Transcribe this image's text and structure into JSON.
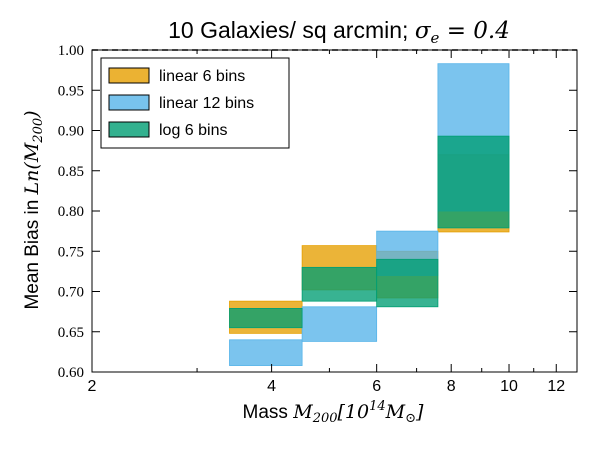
{
  "chart_data": {
    "type": "bar",
    "title": {
      "text": "10 Galaxies/ sq arcmin; ",
      "math_var": "σ",
      "math_sub": "e",
      "math_rest": " = 0.4"
    },
    "xlabel": {
      "text": "Mass ",
      "math": "M",
      "math_sub": "200",
      "math_rest": "[10",
      "math_sup": "14",
      "math_rest2": "M",
      "math_sub2": "⊙",
      "math_close": "]"
    },
    "ylabel": {
      "text": "Mean Bias in ",
      "math": "Ln(M",
      "math_sub": "200",
      "math_close": ")"
    },
    "x_scale": "log",
    "xlim": [
      2,
      13
    ],
    "ylim": [
      0.6,
      1.0
    ],
    "x_ticks": [
      2,
      4,
      6,
      8,
      10,
      12
    ],
    "y_ticks": [
      "0.60",
      "0.65",
      "0.70",
      "0.75",
      "0.80",
      "0.85",
      "0.90",
      "0.95",
      "1.00"
    ],
    "reference_line": {
      "y": 1.0,
      "style": "dashed"
    },
    "legend_position": "top-left",
    "series": [
      {
        "name": "linear 6 bins",
        "color": "#E69F00",
        "bands": [
          {
            "x0": 3.4,
            "x1": 4.5,
            "low": 0.648,
            "high": 0.688
          },
          {
            "x0": 4.5,
            "x1": 6.0,
            "low": 0.702,
            "high": 0.757
          },
          {
            "x0": 6.0,
            "x1": 7.6,
            "low": 0.692,
            "high": 0.75
          },
          {
            "x0": 7.6,
            "x1": 10.0,
            "low": 0.774,
            "high": 0.87
          }
        ]
      },
      {
        "name": "linear 12 bins",
        "color": "#56B4E9",
        "bands": [
          {
            "x0": 3.4,
            "x1": 4.5,
            "low": 0.608,
            "high": 0.64
          },
          {
            "x0": 4.5,
            "x1": 6.0,
            "low": 0.638,
            "high": 0.681
          },
          {
            "x0": 6.0,
            "x1": 7.6,
            "low": 0.72,
            "high": 0.775
          },
          {
            "x0": 7.6,
            "x1": 10.0,
            "low": 0.8,
            "high": 0.983
          }
        ]
      },
      {
        "name": "log 6 bins",
        "color": "#009E73",
        "bands": [
          {
            "x0": 3.4,
            "x1": 4.5,
            "low": 0.655,
            "high": 0.679
          },
          {
            "x0": 4.5,
            "x1": 6.0,
            "low": 0.688,
            "high": 0.73
          },
          {
            "x0": 6.0,
            "x1": 7.6,
            "low": 0.681,
            "high": 0.74
          },
          {
            "x0": 7.6,
            "x1": 10.0,
            "low": 0.779,
            "high": 0.893
          }
        ]
      }
    ]
  }
}
